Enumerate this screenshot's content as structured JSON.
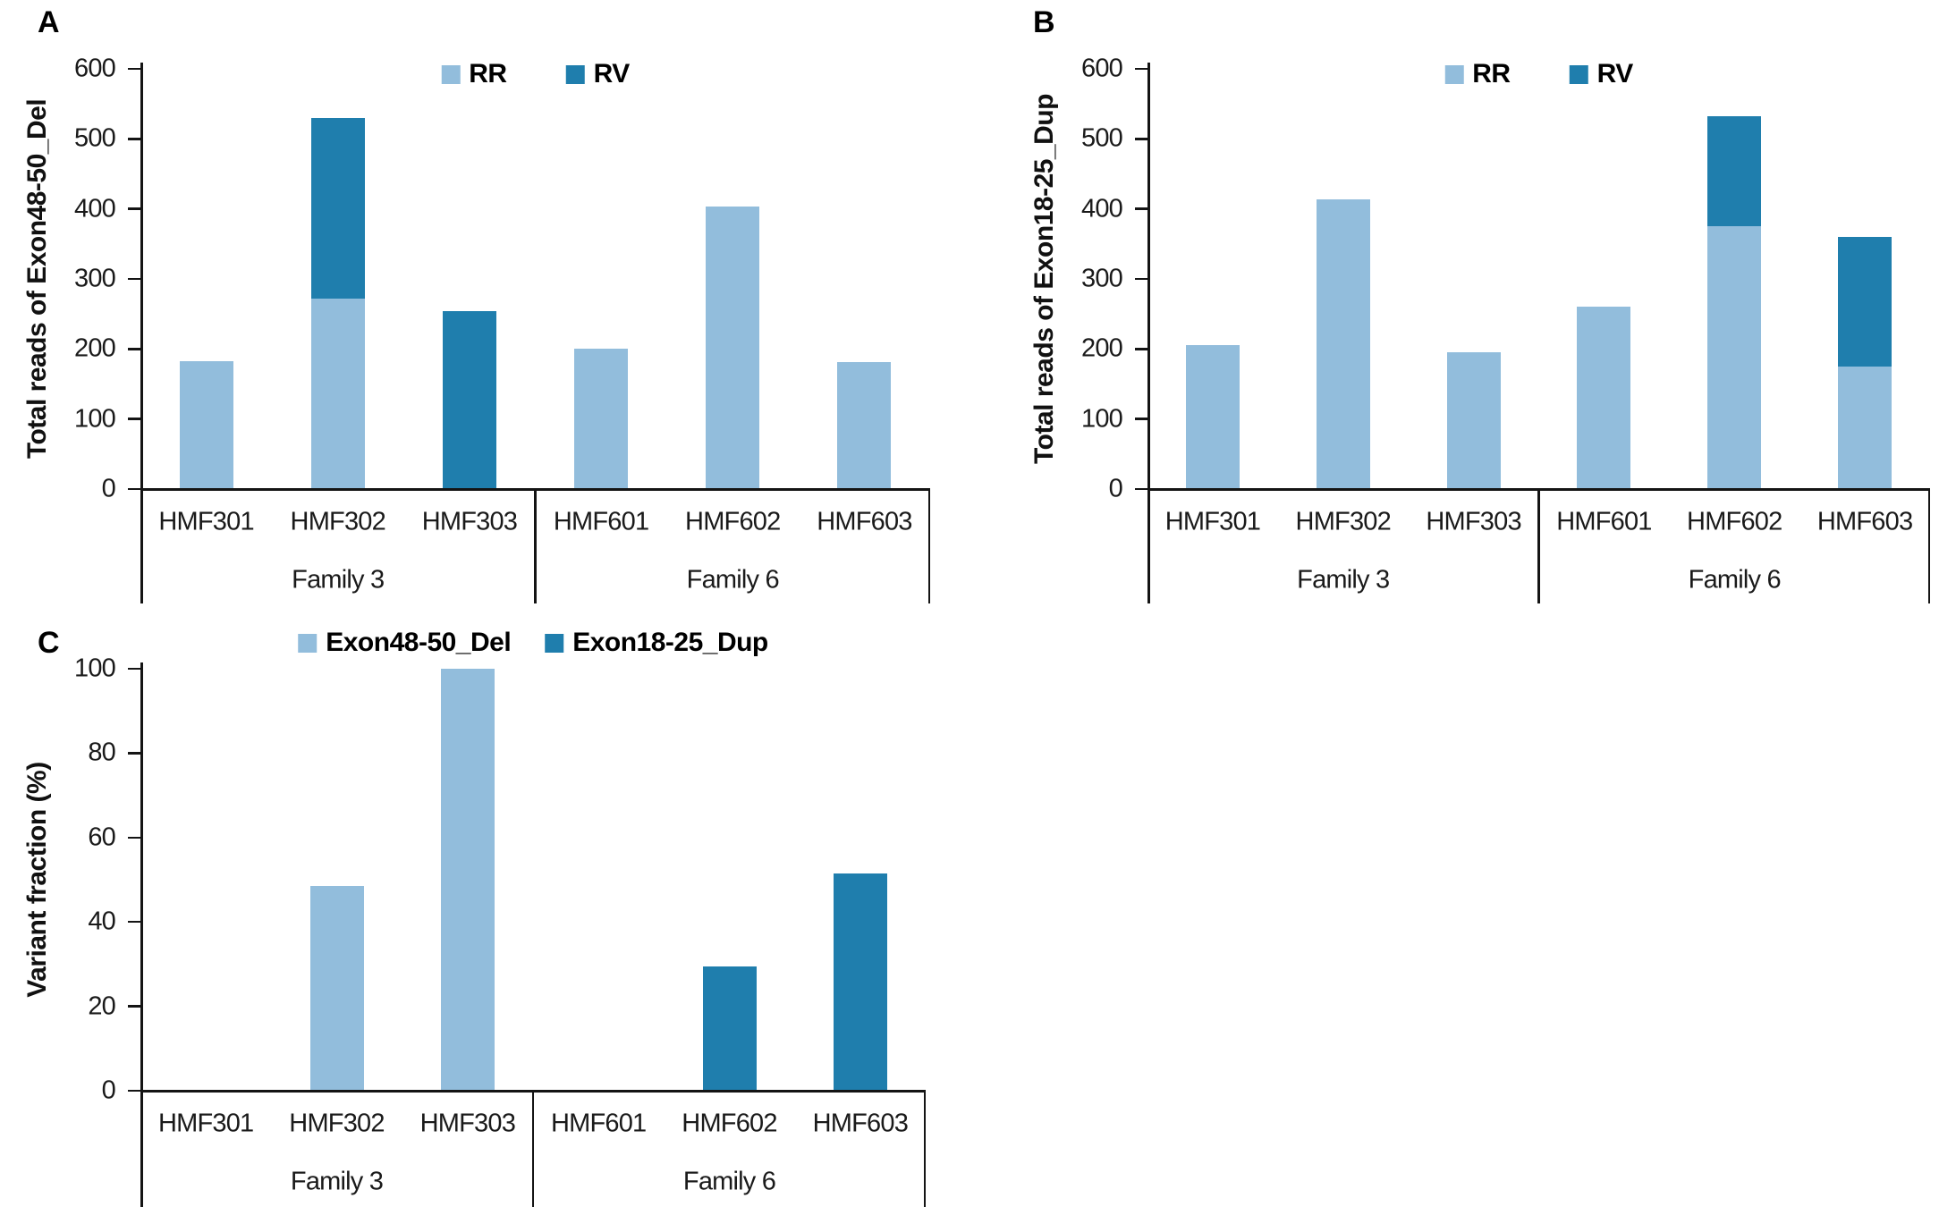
{
  "chart_data": [
    {
      "type": "bar",
      "stacked": true,
      "panel_label": "A",
      "title": "",
      "xlabel": "",
      "ylabel": "Total reads of Exon48-50_Del",
      "ylim": [
        0,
        600
      ],
      "y_ticks": [
        0,
        100,
        200,
        300,
        400,
        500,
        600
      ],
      "grid": false,
      "legend_position": "top-center",
      "categories": [
        "HMF301",
        "HMF302",
        "HMF303",
        "HMF601",
        "HMF602",
        "HMF603"
      ],
      "groups": [
        {
          "label": "Family 3",
          "span": 3
        },
        {
          "label": "Family 6",
          "span": 3
        }
      ],
      "series": [
        {
          "name": "RR",
          "color": "#92BDDC",
          "values": [
            182,
            272,
            0,
            201,
            403,
            181
          ]
        },
        {
          "name": "RV",
          "color": "#1F7EAD",
          "values": [
            0,
            258,
            254,
            0,
            0,
            0
          ]
        }
      ]
    },
    {
      "type": "bar",
      "stacked": true,
      "panel_label": "B",
      "title": "",
      "xlabel": "",
      "ylabel": "Total reads of Exon18-25_Dup",
      "ylim": [
        0,
        600
      ],
      "y_ticks": [
        0,
        100,
        200,
        300,
        400,
        500,
        600
      ],
      "grid": false,
      "legend_position": "top-center",
      "categories": [
        "HMF301",
        "HMF302",
        "HMF303",
        "HMF601",
        "HMF602",
        "HMF603"
      ],
      "groups": [
        {
          "label": "Family 3",
          "span": 3
        },
        {
          "label": "Family 6",
          "span": 3
        }
      ],
      "series": [
        {
          "name": "RR",
          "color": "#92BDDC",
          "values": [
            206,
            413,
            195,
            260,
            375,
            175
          ]
        },
        {
          "name": "RV",
          "color": "#1F7EAD",
          "values": [
            0,
            0,
            0,
            0,
            157,
            185
          ]
        }
      ]
    },
    {
      "type": "bar",
      "stacked": true,
      "panel_label": "C",
      "title": "",
      "xlabel": "",
      "ylabel": "Variant fraction (%)",
      "ylim": [
        0,
        100
      ],
      "y_ticks": [
        0,
        20,
        40,
        60,
        80,
        100
      ],
      "grid": false,
      "legend_position": "top-center",
      "categories": [
        "HMF301",
        "HMF302",
        "HMF303",
        "HMF601",
        "HMF602",
        "HMF603"
      ],
      "groups": [
        {
          "label": "Family 3",
          "span": 3
        },
        {
          "label": "Family 6",
          "span": 3
        }
      ],
      "series": [
        {
          "name": "Exon48-50_Del",
          "color": "#92BDDC",
          "values": [
            0,
            48.5,
            100,
            0,
            0,
            0
          ]
        },
        {
          "name": "Exon18-25_Dup",
          "color": "#1F7EAD",
          "values": [
            0,
            0,
            0,
            0,
            29.5,
            51.5
          ]
        }
      ]
    }
  ]
}
